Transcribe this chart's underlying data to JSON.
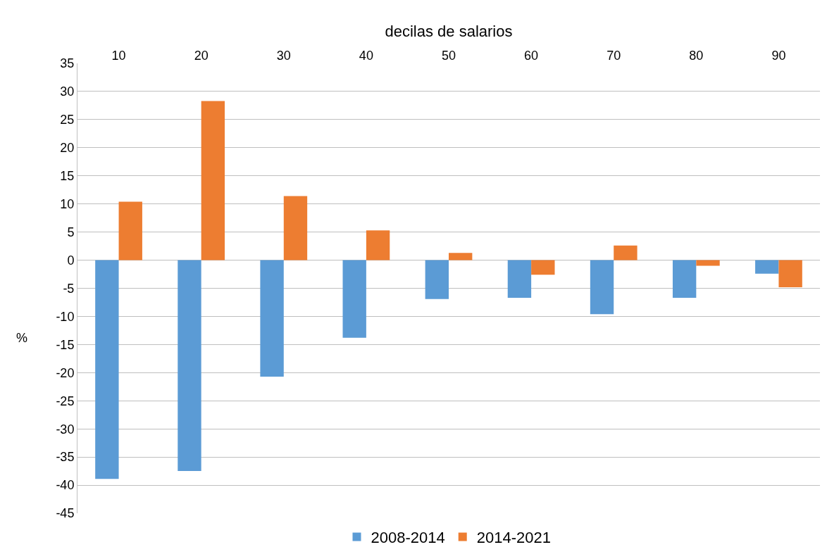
{
  "chart_data": {
    "type": "bar",
    "xlabel": "decilas de salarios",
    "ylabel": "%",
    "categories": [
      "10",
      "20",
      "30",
      "40",
      "50",
      "60",
      "70",
      "80",
      "90"
    ],
    "series": [
      {
        "name": "2008-2014",
        "color": "#5b9bd5",
        "values": [
          -38.9,
          -37.5,
          -20.7,
          -13.8,
          -6.9,
          -6.7,
          -9.6,
          -6.7,
          -2.4
        ]
      },
      {
        "name": "2014-2021",
        "color": "#ed7d31",
        "values": [
          10.4,
          28.3,
          11.4,
          5.3,
          1.3,
          -2.6,
          2.6,
          -1.0,
          -4.8
        ]
      }
    ],
    "ylim": [
      -45,
      35
    ],
    "yticks": [
      -45,
      -40,
      -35,
      -30,
      -25,
      -20,
      -15,
      -10,
      -5,
      0,
      5,
      10,
      15,
      20,
      25,
      30,
      35
    ],
    "grid": "y",
    "legend": "bottom"
  }
}
